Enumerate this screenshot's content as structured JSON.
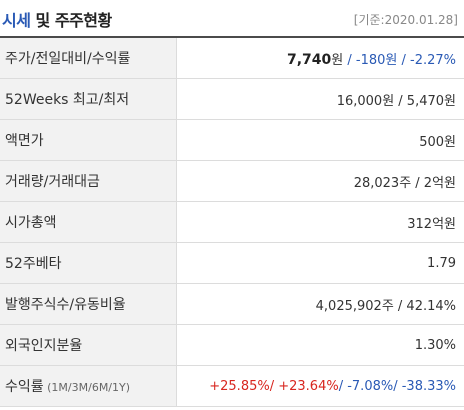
{
  "header": {
    "title_accent": "시세",
    "title_rest": " 및 주주현황",
    "date": "[기준:2020.01.28]"
  },
  "rows": [
    {
      "label": "주가/전일대비/수익률",
      "price": "7,740",
      "price_unit": "원",
      "sep1": " / ",
      "change": "-180원",
      "sep2": " / ",
      "pct": "-2.27%"
    },
    {
      "label": "52Weeks 최고/최저",
      "value": "16,000원 / 5,470원"
    },
    {
      "label": "액면가",
      "value": "500원"
    },
    {
      "label": "거래량/거래대금",
      "value": "28,023주 / 2억원"
    },
    {
      "label": "시가총액",
      "value": "312억원"
    },
    {
      "label": "52주베타",
      "value": "1.79"
    },
    {
      "label": "발행주식수/유동비율",
      "value": "4,025,902주 / 42.14%"
    },
    {
      "label": "외국인지분율",
      "value": "1.30%"
    },
    {
      "label": "수익률",
      "label_sub": " (1M/3M/6M/1Y)",
      "r1": "+25.85%",
      "s1": "/ ",
      "r2": "+23.64%",
      "s2": "/ ",
      "r3": "-7.08%",
      "s3": "/ ",
      "r4": "-38.33%"
    }
  ]
}
